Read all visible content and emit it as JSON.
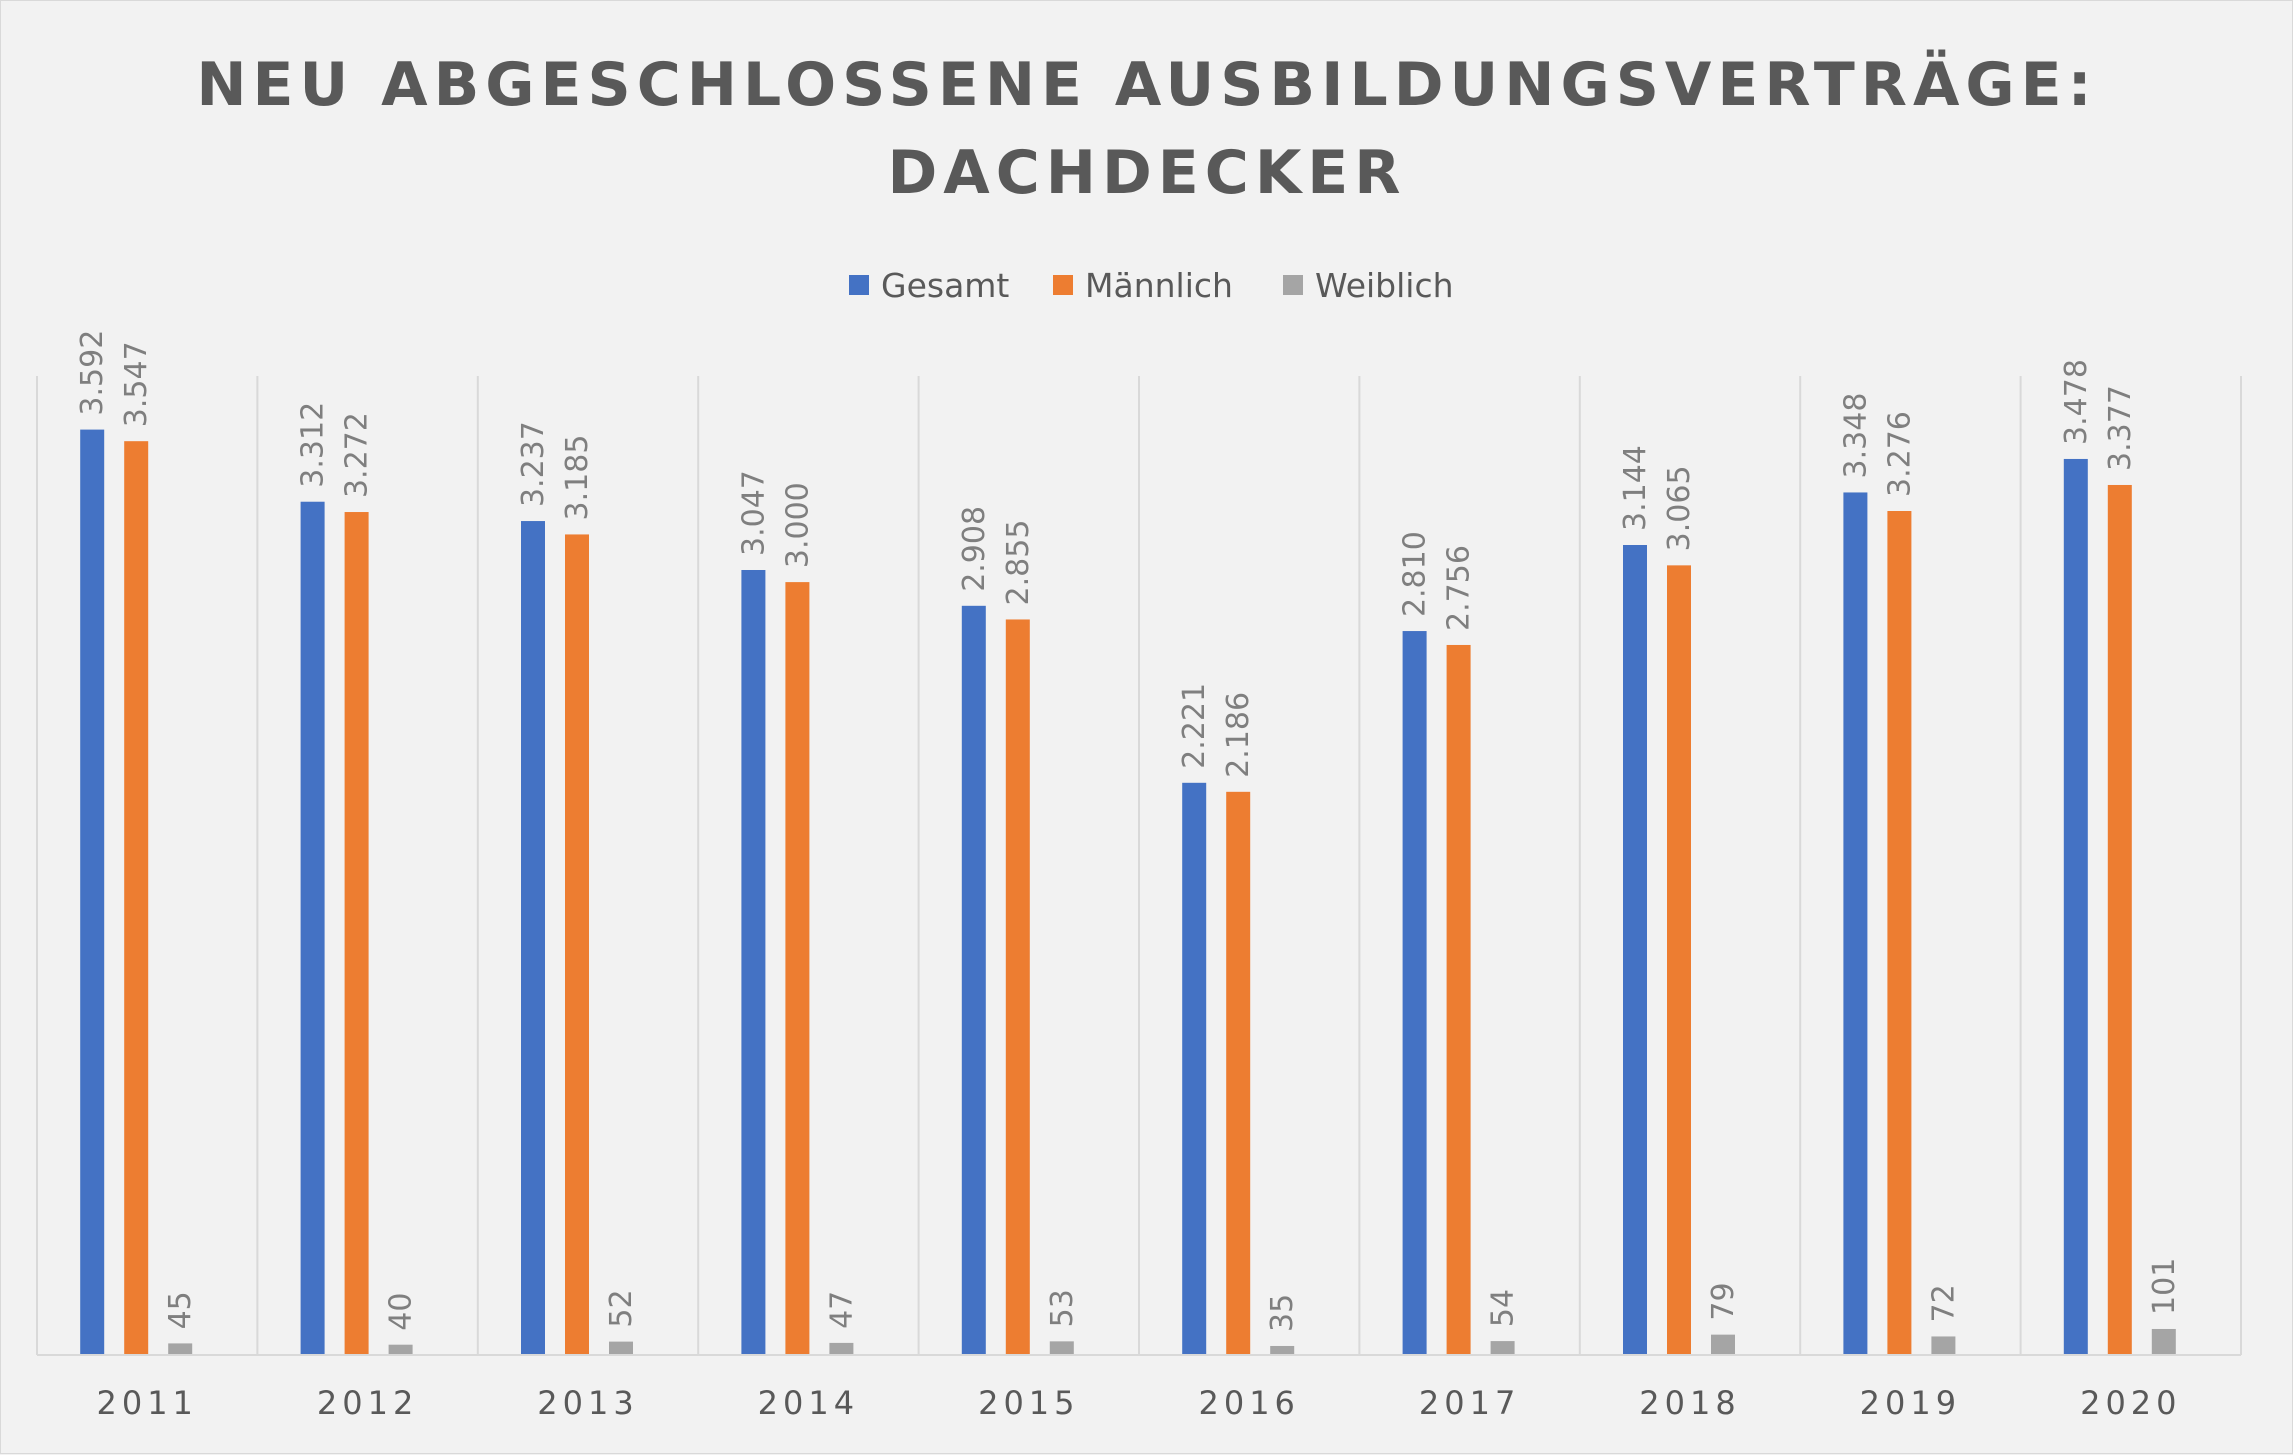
{
  "chart_data": {
    "type": "bar",
    "title": "NEU ABGESCHLOSSENE AUSBILDUNGSVERTRÄGE:",
    "subtitle": "DACHDECKER",
    "xlabel": "",
    "ylabel": "",
    "ylim": [
      0,
      3800
    ],
    "grid": "vertical-separators",
    "legend_position": "top-center",
    "categories": [
      "2011",
      "2012",
      "2013",
      "2014",
      "2015",
      "2016",
      "2017",
      "2018",
      "2019",
      "2020"
    ],
    "series": [
      {
        "name": "Gesamt",
        "color": "#4472c4",
        "values": [
          3592,
          3312,
          3237,
          3047,
          2908,
          2221,
          2810,
          3144,
          3348,
          3478
        ],
        "labels": [
          "3.592",
          "3.312",
          "3.237",
          "3.047",
          "2.908",
          "2.221",
          "2.810",
          "3.144",
          "3.348",
          "3.478"
        ]
      },
      {
        "name": "Männlich",
        "color": "#ed7d31",
        "values": [
          3547,
          3272,
          3185,
          3000,
          2855,
          2186,
          2756,
          3065,
          3276,
          3377
        ],
        "labels": [
          "3.547",
          "3.272",
          "3.185",
          "3.000",
          "2.855",
          "2.186",
          "2.756",
          "3.065",
          "3.276",
          "3.377"
        ]
      },
      {
        "name": "Weiblich",
        "color": "#a5a5a5",
        "values": [
          45,
          40,
          52,
          47,
          53,
          35,
          54,
          79,
          72,
          101
        ],
        "labels": [
          "45",
          "40",
          "52",
          "47",
          "53",
          "35",
          "54",
          "79",
          "72",
          "101"
        ]
      }
    ]
  }
}
